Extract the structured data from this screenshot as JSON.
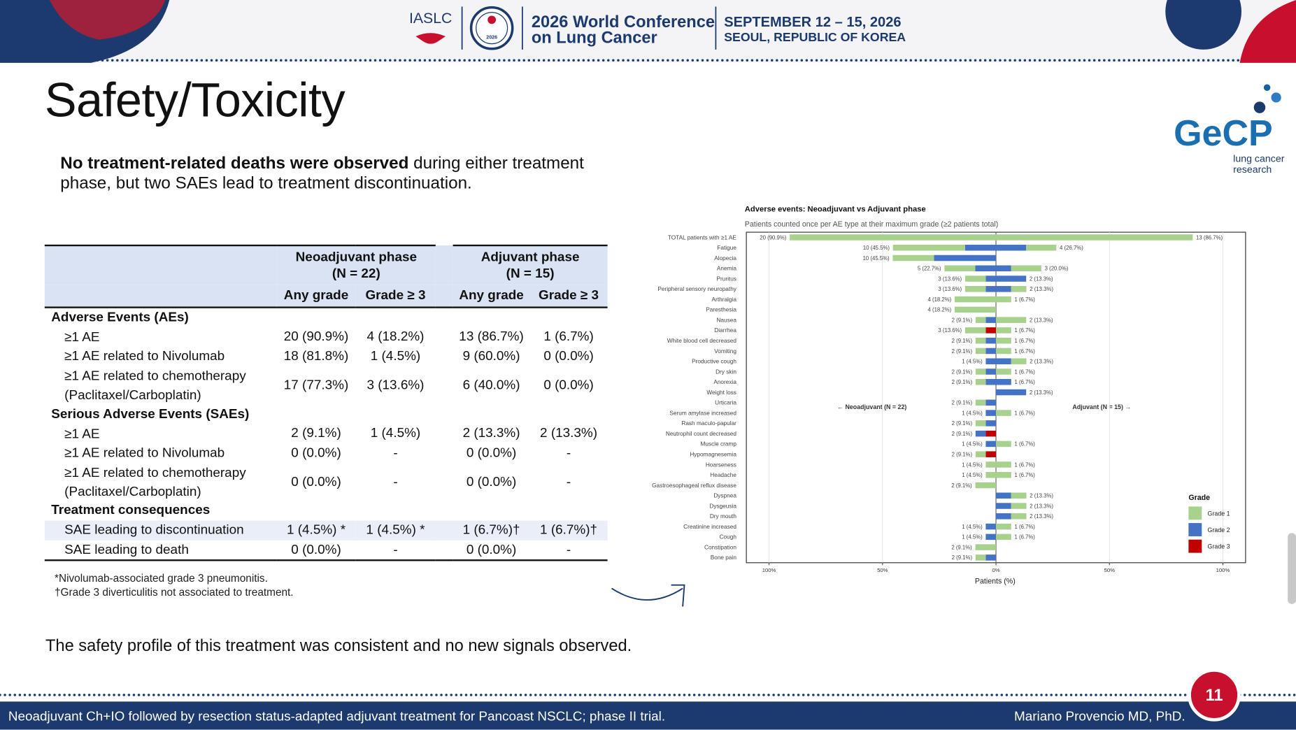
{
  "header": {
    "org": "IASLC",
    "logo_year": "2026",
    "conference_line1": "2026 World Conference",
    "conference_line2": "on Lung Cancer",
    "dates": "SEPTEMBER 12 – 15, 2026",
    "location": "SEOUL, REPUBLIC OF KOREA"
  },
  "title": "Safety/Toxicity",
  "logo": {
    "name": "GeCP",
    "line1": "lung cancer",
    "line2": "research"
  },
  "intro": {
    "bold": "No treatment-related deaths were observed",
    "rest": " during either treatment phase, but two SAEs lead to treatment discontinuation."
  },
  "table": {
    "groups": [
      {
        "name": "Neoadjuvant phase",
        "n": "(N = 22)"
      },
      {
        "name": "Adjuvant phase",
        "n": "(N = 15)"
      }
    ],
    "subheaders": [
      "Any grade",
      "Grade ≥ 3",
      "Any grade",
      "Grade ≥ 3"
    ],
    "rows": [
      [
        "Adverse Events (AEs)"
      ],
      [
        "≥1 AE",
        "20 (90.9%)",
        "4 (18.2%)",
        "13 (86.7%)",
        "1 (6.7%)"
      ],
      [
        "≥1 AE related to Nivolumab",
        "18 (81.8%)",
        "1 (4.5%)",
        "9 (60.0%)",
        "0 (0.0%)"
      ],
      [
        "≥1 AE related to chemotherapy (Paclitaxel/Carboplatin)",
        "17 (77.3%)",
        "3 (13.6%)",
        "6 (40.0%)",
        "0 (0.0%)"
      ],
      [
        "Serious Adverse Events (SAEs)"
      ],
      [
        "≥1 AE",
        "2 (9.1%)",
        "1 (4.5%)",
        "2 (13.3%)",
        "2 (13.3%)"
      ],
      [
        "≥1 AE related to Nivolumab",
        "0 (0.0%)",
        "-",
        "0 (0.0%)",
        "-"
      ],
      [
        "≥1 AE related to chemotherapy (Paclitaxel/Carboplatin)",
        "0 (0.0%)",
        "-",
        "0 (0.0%)",
        "-"
      ],
      [
        "Treatment consequences"
      ],
      [
        "SAE leading to discontinuation",
        "1 (4.5%) *",
        "1 (4.5%) *",
        "1 (6.7%)†",
        "1 (6.7%)†"
      ],
      [
        "SAE leading to death",
        "0 (0.0%)",
        "-",
        "0 (0.0%)",
        "-"
      ]
    ],
    "highlight_row": 9
  },
  "footnotes": [
    "*Nivolumab-associated grade 3 pneumonitis.",
    "†Grade 3 diverticulitis not associated to treatment."
  ],
  "chart_data": {
    "type": "diverging-bar",
    "title": "Adverse events: Neoadjuvant vs Adjuvant phase",
    "subtitle": "Patients counted once per AE type at their maximum grade (≥2 patients total)",
    "xlabel": "Patients (%)",
    "left_annotation": "← Neoadjuvant (N = 22)",
    "right_annotation": "Adjuvant (N = 15) →",
    "legend_title": "Grade",
    "grid": true,
    "xlim": [
      -110,
      110
    ],
    "xticks": [
      {
        "value": -100,
        "label": "100%"
      },
      {
        "value": -50,
        "label": "50%"
      },
      {
        "value": 0,
        "label": "0%"
      },
      {
        "value": 50,
        "label": "50%"
      },
      {
        "value": 100,
        "label": "100%"
      }
    ],
    "categories": [
      "TOTAL patients with ≥1 AE",
      "Fatigue",
      "Alopecia",
      "Anemia",
      "Pruritus",
      "Peripheral sensory neuropathy",
      "Arthralgia",
      "Paresthesia",
      "Nausea",
      "Diarrhea",
      "White blood cell decreased",
      "Vomiting",
      "Productive cough",
      "Dry skin",
      "Anorexia",
      "Weight loss",
      "Urticaria",
      "Serum amylase increased",
      "Rash maculo-papular",
      "Neutrophil count decreased",
      "Muscle cramp",
      "Hypomagnesemia",
      "Hoarseness",
      "Headache",
      "Gastroesophageal reflux disease",
      "Dyspnea",
      "Dysgeusia",
      "Dry mouth",
      "Creatinine increased",
      "Cough",
      "Constipation",
      "Bone pain"
    ],
    "series": [
      {
        "name": "Grade 1",
        "color": "#a9d18e",
        "neoadjuvant": [
          90.9,
          31.8,
          18.2,
          13.6,
          9.1,
          9.1,
          18.2,
          18.2,
          4.5,
          9.1,
          4.5,
          4.5,
          0,
          4.5,
          4.5,
          0,
          4.5,
          0,
          4.5,
          0,
          0,
          4.5,
          4.5,
          4.5,
          9.1,
          0,
          0,
          0,
          0,
          0,
          9.1,
          4.5
        ],
        "adjuvant": [
          86.7,
          13.3,
          0,
          13.3,
          0,
          6.7,
          6.7,
          0,
          13.3,
          6.7,
          6.7,
          6.7,
          6.7,
          6.7,
          0,
          0,
          0,
          6.7,
          0,
          0,
          6.7,
          0,
          6.7,
          6.7,
          0,
          6.7,
          6.7,
          6.7,
          6.7,
          6.7,
          0,
          0
        ]
      },
      {
        "name": "Grade 2",
        "color": "#4472c4",
        "neoadjuvant": [
          0,
          13.6,
          27.3,
          9.1,
          4.5,
          4.5,
          0,
          0,
          4.5,
          0,
          4.5,
          4.5,
          4.5,
          4.5,
          4.5,
          0,
          4.5,
          4.5,
          4.5,
          4.5,
          4.5,
          0,
          0,
          0,
          0,
          0,
          0,
          0,
          4.5,
          4.5,
          0,
          4.5
        ],
        "adjuvant": [
          0,
          13.3,
          0,
          6.7,
          13.3,
          6.7,
          0,
          0,
          0,
          0,
          0,
          0,
          6.7,
          0,
          6.7,
          13.3,
          0,
          0,
          0,
          0,
          0,
          0,
          0,
          0,
          0,
          6.7,
          6.7,
          6.7,
          0,
          0,
          0,
          0
        ]
      },
      {
        "name": "Grade 3",
        "color": "#c00000",
        "neoadjuvant": [
          0,
          0,
          0,
          0,
          0,
          0,
          0,
          0,
          0,
          4.5,
          0,
          0,
          0,
          0,
          0,
          0,
          0,
          0,
          0,
          4.5,
          0,
          4.5,
          0,
          0,
          0,
          0,
          0,
          0,
          0,
          0,
          0,
          0
        ],
        "adjuvant": [
          0,
          0,
          0,
          0,
          0,
          0,
          0,
          0,
          0,
          0,
          0,
          0,
          0,
          0,
          0,
          0,
          0,
          0,
          0,
          0,
          0,
          0,
          0,
          0,
          0,
          0,
          0,
          0,
          0,
          0,
          0,
          0
        ]
      }
    ],
    "neoadjuvant_labels": [
      "20 (90.9%)",
      "10 (45.5%)",
      "10 (45.5%)",
      "5 (22.7%)",
      "3 (13.6%)",
      "3 (13.6%)",
      "4 (18.2%)",
      "4 (18.2%)",
      "2 (9.1%)",
      "3 (13.6%)",
      "2 (9.1%)",
      "2 (9.1%)",
      "1 (4.5%)",
      "2 (9.1%)",
      "2 (9.1%)",
      null,
      "2 (9.1%)",
      "1 (4.5%)",
      "2 (9.1%)",
      "2 (9.1%)",
      "1 (4.5%)",
      "2 (9.1%)",
      "1 (4.5%)",
      "1 (4.5%)",
      "2 (9.1%)",
      null,
      null,
      null,
      "1 (4.5%)",
      "1 (4.5%)",
      "2 (9.1%)",
      "2 (9.1%)"
    ],
    "adjuvant_labels": [
      "13 (86.7%)",
      "4 (26.7%)",
      null,
      "3 (20.0%)",
      "2 (13.3%)",
      "2 (13.3%)",
      "1 (6.7%)",
      null,
      "2 (13.3%)",
      "1 (6.7%)",
      "1 (6.7%)",
      "1 (6.7%)",
      "2 (13.3%)",
      "1 (6.7%)",
      "1 (6.7%)",
      "2 (13.3%)",
      null,
      "1 (6.7%)",
      null,
      null,
      "1 (6.7%)",
      null,
      "1 (6.7%)",
      "1 (6.7%)",
      null,
      "2 (13.3%)",
      "2 (13.3%)",
      "2 (13.3%)",
      "1 (6.7%)",
      "1 (6.7%)",
      null,
      null
    ]
  },
  "conclusion": "The safety profile of this treatment was consistent and no new signals observed.",
  "footer": {
    "left": "Neoadjuvant Ch+IO followed by resection status-adapted adjuvant treatment for Pancoast NSCLC; phase II trial.",
    "right": "Mariano Provencio MD, PhD.",
    "page": "11"
  }
}
